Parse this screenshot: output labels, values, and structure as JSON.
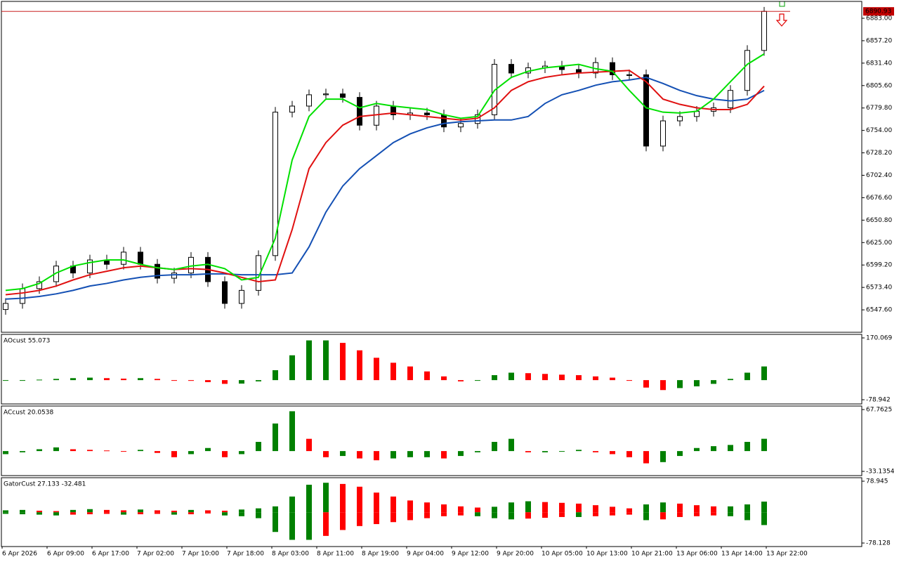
{
  "chart_data": [
    {
      "type": "candlestick",
      "open": [
        6548,
        6555,
        6572,
        6580,
        6598,
        6590,
        6605,
        6600,
        6614,
        6600,
        6584,
        6590,
        6608,
        6580,
        6555,
        6570,
        6610,
        6775,
        6782,
        6795,
        6796,
        6792,
        6760,
        6782,
        6772,
        6774,
        6772,
        6758,
        6762,
        6772,
        6830,
        6820,
        6826,
        6828,
        6824,
        6820,
        6832,
        6818,
        6818,
        6736,
        6765,
        6770,
        6776,
        6780,
        6800,
        6846
      ],
      "high": [
        6561,
        6578,
        6586,
        6604,
        6604,
        6611,
        6611,
        6620,
        6620,
        6606,
        6596,
        6614,
        6614,
        6586,
        6576,
        6616,
        6781,
        6788,
        6801,
        6802,
        6802,
        6798,
        6788,
        6788,
        6780,
        6780,
        6778,
        6768,
        6778,
        6836,
        6836,
        6832,
        6834,
        6834,
        6830,
        6838,
        6838,
        6824,
        6824,
        6771,
        6776,
        6782,
        6786,
        6806,
        6852,
        6896
      ],
      "low": [
        6542,
        6549,
        6566,
        6574,
        6584,
        6584,
        6594,
        6594,
        6594,
        6578,
        6578,
        6584,
        6574,
        6549,
        6549,
        6564,
        6604,
        6769,
        6776,
        6789,
        6786,
        6754,
        6754,
        6766,
        6766,
        6766,
        6752,
        6752,
        6756,
        6766,
        6814,
        6814,
        6820,
        6818,
        6814,
        6814,
        6812,
        6812,
        6730,
        6730,
        6759,
        6764,
        6770,
        6774,
        6794,
        6840
      ],
      "close": [
        6555,
        6572,
        6580,
        6598,
        6590,
        6605,
        6600,
        6614,
        6600,
        6584,
        6590,
        6608,
        6580,
        6555,
        6570,
        6610,
        6775,
        6782,
        6795,
        6796,
        6792,
        6760,
        6782,
        6772,
        6774,
        6772,
        6758,
        6762,
        6772,
        6830,
        6820,
        6826,
        6828,
        6824,
        6820,
        6832,
        6818,
        6818,
        6736,
        6765,
        6770,
        6776,
        6780,
        6800,
        6846,
        6890.93
      ],
      "lines": [
        {
          "color": "#1450b4",
          "values": [
            6560,
            6561,
            6563,
            6566,
            6570,
            6575,
            6578,
            6582,
            6585,
            6587,
            6588,
            6588,
            6589,
            6589,
            6588,
            6588,
            6588,
            6590,
            6620,
            6660,
            6690,
            6710,
            6725,
            6740,
            6750,
            6757,
            6762,
            6764,
            6765,
            6766,
            6766,
            6770,
            6785,
            6795,
            6800,
            6806,
            6810,
            6812,
            6815,
            6808,
            6800,
            6794,
            6790,
            6788,
            6790,
            6800
          ]
        },
        {
          "color": "#e01010",
          "values": [
            6565,
            6567,
            6570,
            6575,
            6582,
            6588,
            6592,
            6596,
            6598,
            6596,
            6594,
            6595,
            6594,
            6590,
            6585,
            6580,
            6582,
            6640,
            6710,
            6740,
            6760,
            6770,
            6772,
            6774,
            6772,
            6770,
            6768,
            6766,
            6768,
            6780,
            6800,
            6810,
            6815,
            6818,
            6820,
            6821,
            6822,
            6823,
            6810,
            6790,
            6784,
            6780,
            6778,
            6778,
            6784,
            6805
          ]
        },
        {
          "color": "#00e000",
          "values": [
            6570,
            6572,
            6578,
            6590,
            6598,
            6602,
            6605,
            6605,
            6600,
            6596,
            6594,
            6598,
            6600,
            6595,
            6582,
            6585,
            6630,
            6720,
            6770,
            6790,
            6790,
            6780,
            6785,
            6782,
            6780,
            6778,
            6772,
            6768,
            6770,
            6800,
            6815,
            6822,
            6826,
            6828,
            6830,
            6825,
            6822,
            6800,
            6780,
            6775,
            6774,
            6776,
            6790,
            6810,
            6830,
            6842
          ]
        }
      ],
      "last_price": 6890.93,
      "ylim": [
        6521.8,
        6902.4
      ],
      "yticks": [
        {
          "value": 6883,
          "label": "6883.00"
        },
        {
          "value": 6857.2,
          "label": "6857.20"
        },
        {
          "value": 6831.4,
          "label": "6831.40"
        },
        {
          "value": 6805.6,
          "label": "6805.60"
        },
        {
          "value": 6779.8,
          "label": "6779.80"
        },
        {
          "value": 6754,
          "label": "6754.00"
        },
        {
          "value": 6728.2,
          "label": "6728.20"
        },
        {
          "value": 6702.4,
          "label": "6702.40"
        },
        {
          "value": 6676.6,
          "label": "6676.60"
        },
        {
          "value": 6650.8,
          "label": "6650.80"
        },
        {
          "value": 6625,
          "label": "6625.00"
        },
        {
          "value": 6599.2,
          "label": "6599.20"
        },
        {
          "value": 6573.4,
          "label": "6573.40"
        },
        {
          "value": 6547.6,
          "label": "6547.60"
        }
      ]
    },
    {
      "type": "bar",
      "title": "AOcust 55.073",
      "up_color": "#008000",
      "down_color": "#ff0000",
      "values": [
        -2,
        -1,
        2,
        5,
        8,
        10,
        8,
        6,
        8,
        5,
        0,
        -3,
        -8,
        -15,
        -14,
        -5,
        40,
        100,
        160,
        160,
        150,
        120,
        90,
        70,
        55,
        35,
        15,
        -5,
        -2,
        20,
        30,
        28,
        25,
        22,
        20,
        15,
        10,
        0,
        -30,
        -40,
        -32,
        -25,
        -15,
        5,
        30,
        55.073
      ],
      "ylim": [
        -95.9,
        184.2
      ],
      "yticks": [
        170.069,
        -78.942
      ]
    },
    {
      "type": "bar",
      "title": "ACcust 20.0538",
      "up_color": "#008000",
      "down_color": "#ff0000",
      "values": [
        -5,
        -2,
        3,
        6,
        3,
        2,
        1,
        0,
        2,
        -3,
        -10,
        -5,
        5,
        -10,
        -5,
        15,
        45,
        65,
        20,
        -10,
        -8,
        -12,
        -15,
        -12,
        -10,
        -10,
        -12,
        -8,
        -2,
        15,
        20,
        -2,
        -2,
        -1,
        2,
        -2,
        -5,
        -10,
        -20,
        -18,
        -8,
        5,
        8,
        10,
        15,
        20.0538
      ],
      "ylim": [
        -40.014,
        73.495
      ],
      "yticks": [
        67.7625,
        -33.1354
      ]
    },
    {
      "type": "gator",
      "title": "GatorCust 27.133 -32.481",
      "up_color": "#008000",
      "down_color": "#ff0000",
      "series": [
        {
          "values": [
            5,
            6,
            4,
            3,
            6,
            8,
            6,
            5,
            7,
            5,
            4,
            6,
            5,
            4,
            7,
            10,
            15,
            40,
            70,
            75,
            72,
            65,
            50,
            40,
            30,
            25,
            20,
            15,
            12,
            14,
            25,
            28,
            26,
            24,
            22,
            18,
            14,
            10,
            20,
            25,
            22,
            18,
            15,
            15,
            20,
            27.133
          ]
        },
        {
          "values": [
            -4,
            -5,
            -6,
            -8,
            -6,
            -5,
            -4,
            -6,
            -5,
            -4,
            -6,
            -5,
            -3,
            -8,
            -10,
            -15,
            -50,
            -70,
            -70,
            -60,
            -45,
            -35,
            -30,
            -25,
            -20,
            -15,
            -10,
            -8,
            -10,
            -15,
            -18,
            -16,
            -14,
            -12,
            -12,
            -10,
            -8,
            -6,
            -20,
            -18,
            -12,
            -10,
            -8,
            -10,
            -20,
            -32.481
          ]
        }
      ],
      "ylim": [
        -87.05,
        87.87
      ],
      "yticks": [
        78.945,
        -78.128
      ],
      "xtick_labels": [
        "6 Apr 2026",
        "6 Apr 09:00",
        "6 Apr 17:00",
        "7 Apr 02:00",
        "7 Apr 10:00",
        "7 Apr 18:00",
        "8 Apr 03:00",
        "8 Apr 11:00",
        "8 Apr 19:00",
        "9 Apr 04:00",
        "9 Apr 12:00",
        "9 Apr 20:00",
        "10 Apr 05:00",
        "10 Apr 13:00",
        "10 Apr 21:00",
        "13 Apr 06:00",
        "13 Apr 14:00",
        "13 Apr 22:00"
      ]
    }
  ]
}
